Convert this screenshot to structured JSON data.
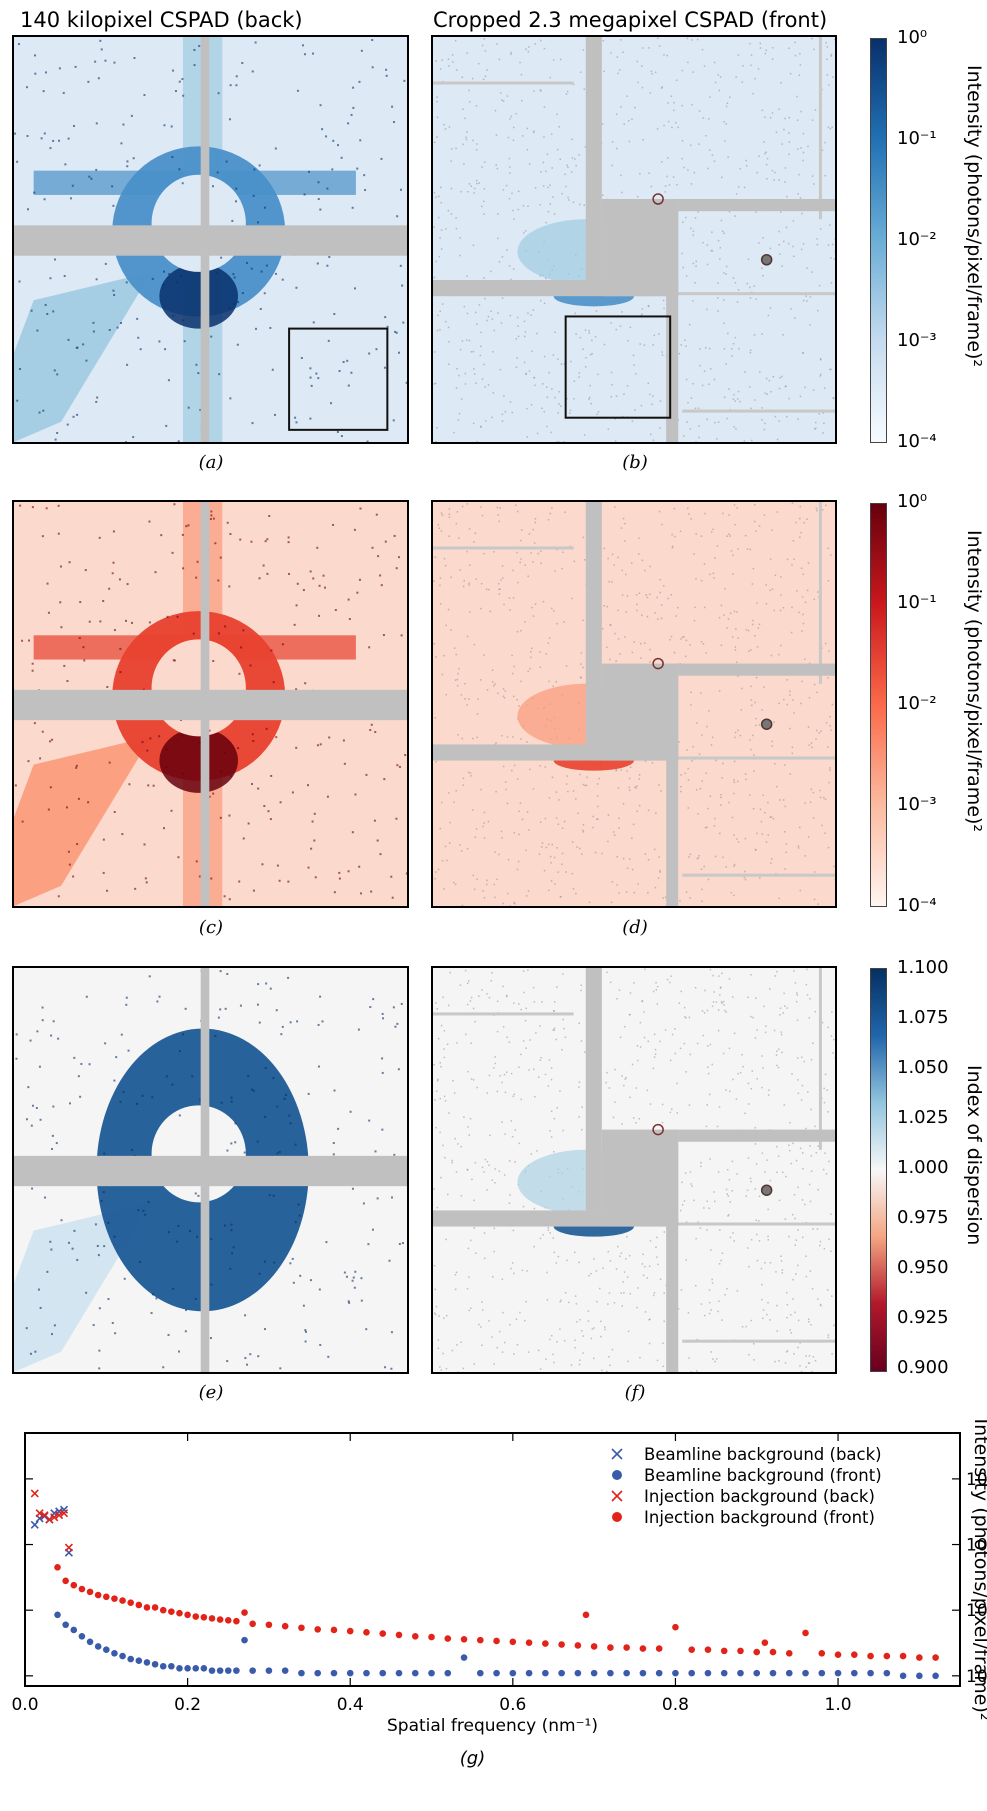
{
  "column_titles": {
    "left": "140 kilopixel CSPAD (back)",
    "right": "Cropped 2.3 megapixel CSPAD (front)"
  },
  "panels": [
    {
      "label": "(a)",
      "colormap": "blues",
      "detector": "back",
      "roi_box": true
    },
    {
      "label": "(b)",
      "colormap": "blues",
      "detector": "front",
      "roi_box": true
    },
    {
      "label": "(c)",
      "colormap": "reds",
      "detector": "back",
      "roi_box": false
    },
    {
      "label": "(d)",
      "colormap": "reds",
      "detector": "front",
      "roi_box": false
    },
    {
      "label": "(e)",
      "colormap": "diverging",
      "detector": "back",
      "roi_box": false
    },
    {
      "label": "(f)",
      "colormap": "diverging",
      "detector": "front",
      "roi_box": false
    }
  ],
  "colorbars": [
    {
      "title": "Intensity (photons/pixel/frame)²",
      "scale": "log",
      "ticks": [
        "10⁰",
        "10⁻¹",
        "10⁻²",
        "10⁻³",
        "10⁻⁴"
      ],
      "colors": [
        "#08306b",
        "#2171b5",
        "#6baed6",
        "#c6dbef",
        "#f7fbff"
      ]
    },
    {
      "title": "Intensity (photons/pixel/frame)²",
      "scale": "log",
      "ticks": [
        "10⁰",
        "10⁻¹",
        "10⁻²",
        "10⁻³",
        "10⁻⁴"
      ],
      "colors": [
        "#67000d",
        "#cb181d",
        "#fb6a4a",
        "#fcbba1",
        "#fff5f0"
      ]
    },
    {
      "title": "Index of dispersion",
      "scale": "linear",
      "ticks": [
        "1.100",
        "1.075",
        "1.050",
        "1.025",
        "1.000",
        "0.975",
        "0.950",
        "0.925",
        "0.900"
      ],
      "colors": [
        "#053061",
        "#2166ac",
        "#92c5de",
        "#f7f7f7",
        "#f4a582",
        "#b2182b",
        "#67001f"
      ]
    }
  ],
  "chart_data": {
    "type": "scatter",
    "label": "(g)",
    "xlabel": "Spatial frequency (nm⁻¹)",
    "ylabel": "Intensity (photons/pixel/frame)²",
    "xlim": [
      0.0,
      1.15
    ],
    "ylim": [
      7e-05,
      0.5
    ],
    "yscale": "log",
    "xticks": [
      "0.0",
      "0.2",
      "0.4",
      "0.6",
      "0.8",
      "1.0"
    ],
    "yticks": [
      "10⁻¹",
      "10⁻²",
      "10⁻³",
      "10⁻⁴"
    ],
    "legend_position": "top-right",
    "series": [
      {
        "name": "Beamline background (back)",
        "marker": "x",
        "color": "#3a5bab",
        "x": [
          0.012,
          0.018,
          0.024,
          0.03,
          0.036,
          0.042,
          0.048,
          0.054
        ],
        "y": [
          0.02,
          0.025,
          0.027,
          0.024,
          0.03,
          0.032,
          0.034,
          0.0075
        ]
      },
      {
        "name": "Beamline background (front)",
        "marker": "o",
        "color": "#3a5bab",
        "x": [
          0.04,
          0.05,
          0.06,
          0.07,
          0.08,
          0.09,
          0.1,
          0.11,
          0.12,
          0.13,
          0.14,
          0.15,
          0.16,
          0.17,
          0.18,
          0.19,
          0.2,
          0.21,
          0.22,
          0.23,
          0.24,
          0.25,
          0.26,
          0.27,
          0.28,
          0.3,
          0.32,
          0.34,
          0.36,
          0.38,
          0.4,
          0.42,
          0.44,
          0.46,
          0.48,
          0.5,
          0.52,
          0.54,
          0.56,
          0.58,
          0.6,
          0.62,
          0.64,
          0.66,
          0.68,
          0.7,
          0.72,
          0.74,
          0.76,
          0.78,
          0.8,
          0.82,
          0.84,
          0.86,
          0.88,
          0.9,
          0.92,
          0.94,
          0.96,
          0.98,
          1.0,
          1.02,
          1.04,
          1.06,
          1.08,
          1.1,
          1.12
        ],
        "y": [
          0.00085,
          0.0006,
          0.0005,
          0.0004,
          0.00033,
          0.00028,
          0.00025,
          0.00022,
          0.0002,
          0.00018,
          0.00017,
          0.00016,
          0.00015,
          0.00014,
          0.00014,
          0.00013,
          0.00013,
          0.00013,
          0.00013,
          0.00012,
          0.00012,
          0.00012,
          0.00012,
          0.00035,
          0.00012,
          0.00012,
          0.00012,
          0.00011,
          0.00011,
          0.00011,
          0.00011,
          0.00011,
          0.00011,
          0.00011,
          0.00011,
          0.00011,
          0.00011,
          0.00019,
          0.00011,
          0.00011,
          0.00011,
          0.00011,
          0.00011,
          0.00011,
          0.00011,
          0.00011,
          0.00011,
          0.00011,
          0.00011,
          0.00011,
          0.00011,
          0.00011,
          0.00011,
          0.00011,
          0.00011,
          0.00011,
          0.00011,
          0.00011,
          0.00011,
          0.00011,
          0.00011,
          0.00011,
          0.00011,
          0.00011,
          0.0001,
          0.0001,
          0.0001
        ]
      },
      {
        "name": "Injection background (back)",
        "marker": "x",
        "color": "#e2231a",
        "x": [
          0.012,
          0.018,
          0.024,
          0.03,
          0.036,
          0.042,
          0.048,
          0.054
        ],
        "y": [
          0.06,
          0.03,
          0.028,
          0.024,
          0.026,
          0.028,
          0.03,
          0.009
        ]
      },
      {
        "name": "Injection background (front)",
        "marker": "o",
        "color": "#e2231a",
        "x": [
          0.04,
          0.05,
          0.06,
          0.07,
          0.08,
          0.09,
          0.1,
          0.11,
          0.12,
          0.13,
          0.14,
          0.15,
          0.16,
          0.17,
          0.18,
          0.19,
          0.2,
          0.21,
          0.22,
          0.23,
          0.24,
          0.25,
          0.26,
          0.27,
          0.28,
          0.3,
          0.32,
          0.34,
          0.36,
          0.38,
          0.4,
          0.42,
          0.44,
          0.46,
          0.48,
          0.5,
          0.52,
          0.54,
          0.56,
          0.58,
          0.6,
          0.62,
          0.64,
          0.66,
          0.68,
          0.69,
          0.7,
          0.72,
          0.74,
          0.76,
          0.78,
          0.8,
          0.82,
          0.84,
          0.86,
          0.88,
          0.9,
          0.91,
          0.92,
          0.94,
          0.96,
          0.98,
          1.0,
          1.02,
          1.04,
          1.06,
          1.08,
          1.1,
          1.12
        ],
        "y": [
          0.0045,
          0.0028,
          0.0024,
          0.0021,
          0.0019,
          0.0017,
          0.0016,
          0.0015,
          0.0014,
          0.0013,
          0.0012,
          0.0011,
          0.0011,
          0.001,
          0.00095,
          0.0009,
          0.00085,
          0.0008,
          0.00078,
          0.00075,
          0.00072,
          0.0007,
          0.00068,
          0.00092,
          0.00062,
          0.0006,
          0.00057,
          0.00054,
          0.00051,
          0.0005,
          0.00048,
          0.00046,
          0.00044,
          0.00042,
          0.0004,
          0.00039,
          0.00037,
          0.00036,
          0.00035,
          0.00034,
          0.00033,
          0.00032,
          0.00031,
          0.0003,
          0.00029,
          0.00085,
          0.00028,
          0.00027,
          0.00027,
          0.00026,
          0.00026,
          0.00055,
          0.00025,
          0.00025,
          0.00024,
          0.00024,
          0.00023,
          0.00032,
          0.00023,
          0.00022,
          0.00045,
          0.00022,
          0.00021,
          0.00021,
          0.0002,
          0.0002,
          0.0002,
          0.00019,
          0.00019
        ]
      }
    ]
  }
}
